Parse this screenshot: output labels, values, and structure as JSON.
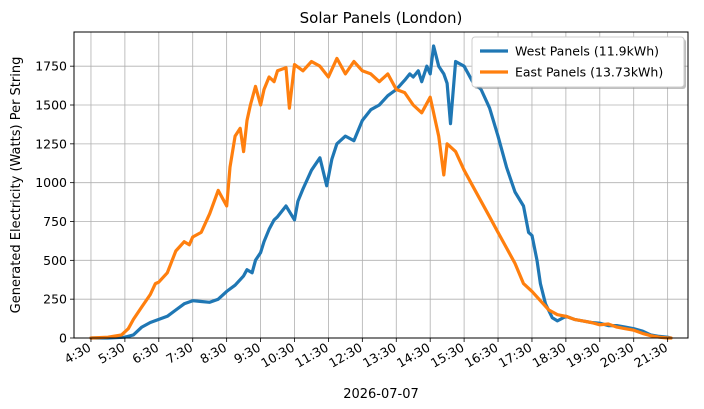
{
  "chart_data": {
    "type": "line",
    "title": "Solar Panels (London)",
    "xlabel": "2026-07-07",
    "ylabel": "Generated Electricity (Watts) Per String",
    "x_unit": "hours",
    "xlim": [
      4.0,
      22.1
    ],
    "ylim": [
      0,
      1970
    ],
    "x_ticks": [
      4.5,
      5.5,
      6.5,
      7.5,
      8.5,
      9.5,
      10.5,
      11.5,
      12.5,
      13.5,
      14.5,
      15.5,
      16.5,
      17.5,
      18.5,
      19.5,
      20.5,
      21.5
    ],
    "x_tick_labels": [
      "4:30",
      "5:30",
      "6:30",
      "7:30",
      "8:30",
      "9:30",
      "10:30",
      "11:30",
      "12:30",
      "13:30",
      "14:30",
      "15:30",
      "16:30",
      "17:30",
      "18:30",
      "19:30",
      "20:30",
      "21:30"
    ],
    "y_ticks": [
      0,
      250,
      500,
      750,
      1000,
      1250,
      1500,
      1750
    ],
    "y_tick_labels": [
      "0",
      "250",
      "500",
      "750",
      "1000",
      "1250",
      "1500",
      "1750"
    ],
    "grid": true,
    "legend_position": "top-right",
    "series": [
      {
        "name": "West Panels (11.9kWh)",
        "color": "#1f77b4",
        "x": [
          4.5,
          5.0,
          5.5,
          5.75,
          6.0,
          6.25,
          6.5,
          6.75,
          7.0,
          7.25,
          7.5,
          7.75,
          8.0,
          8.25,
          8.5,
          8.75,
          9.0,
          9.1,
          9.25,
          9.35,
          9.5,
          9.6,
          9.75,
          9.9,
          10.0,
          10.25,
          10.5,
          10.6,
          10.75,
          11.0,
          11.25,
          11.45,
          11.6,
          11.75,
          12.0,
          12.25,
          12.5,
          12.75,
          13.0,
          13.25,
          13.5,
          13.75,
          13.9,
          14.0,
          14.15,
          14.25,
          14.4,
          14.5,
          14.6,
          14.75,
          14.9,
          15.0,
          15.1,
          15.25,
          15.5,
          15.75,
          16.0,
          16.25,
          16.5,
          16.75,
          17.0,
          17.25,
          17.4,
          17.5,
          17.65,
          17.75,
          17.9,
          18.1,
          18.25,
          18.5,
          18.75,
          19.0,
          19.25,
          19.5,
          19.75,
          20.0,
          20.25,
          20.5,
          20.75,
          21.0,
          21.25,
          21.5,
          21.6
        ],
        "values": [
          0,
          0,
          5,
          20,
          70,
          100,
          120,
          140,
          180,
          220,
          240,
          235,
          230,
          250,
          300,
          340,
          400,
          440,
          420,
          500,
          550,
          620,
          700,
          760,
          780,
          850,
          760,
          880,
          960,
          1080,
          1160,
          980,
          1150,
          1250,
          1300,
          1270,
          1400,
          1470,
          1500,
          1560,
          1600,
          1660,
          1700,
          1680,
          1720,
          1650,
          1750,
          1700,
          1880,
          1750,
          1700,
          1640,
          1380,
          1780,
          1750,
          1650,
          1600,
          1480,
          1300,
          1100,
          940,
          850,
          680,
          660,
          500,
          350,
          220,
          130,
          110,
          140,
          120,
          110,
          100,
          95,
          80,
          80,
          70,
          60,
          45,
          20,
          10,
          5,
          0
        ]
      },
      {
        "name": "East Panels (13.73kWh)",
        "color": "#ff7f0e",
        "x": [
          4.5,
          5.0,
          5.4,
          5.6,
          5.75,
          6.0,
          6.25,
          6.4,
          6.5,
          6.75,
          7.0,
          7.25,
          7.4,
          7.5,
          7.75,
          8.0,
          8.25,
          8.5,
          8.6,
          8.75,
          8.9,
          9.0,
          9.1,
          9.2,
          9.35,
          9.5,
          9.6,
          9.75,
          9.9,
          10.0,
          10.25,
          10.35,
          10.5,
          10.75,
          11.0,
          11.25,
          11.5,
          11.75,
          12.0,
          12.25,
          12.5,
          12.75,
          13.0,
          13.25,
          13.5,
          13.75,
          14.0,
          14.25,
          14.5,
          14.75,
          14.9,
          15.0,
          15.25,
          15.5,
          15.75,
          16.0,
          16.25,
          16.5,
          16.75,
          17.0,
          17.25,
          17.5,
          17.75,
          18.0,
          18.25,
          18.5,
          18.75,
          19.0,
          19.25,
          19.5,
          19.75,
          20.0,
          20.25,
          20.5,
          20.75,
          21.0,
          21.25,
          21.5,
          21.6
        ],
        "values": [
          0,
          5,
          20,
          60,
          120,
          200,
          280,
          350,
          360,
          420,
          560,
          620,
          600,
          650,
          680,
          800,
          950,
          850,
          1100,
          1300,
          1350,
          1200,
          1400,
          1500,
          1620,
          1500,
          1600,
          1680,
          1650,
          1720,
          1740,
          1480,
          1760,
          1720,
          1780,
          1750,
          1680,
          1800,
          1700,
          1780,
          1720,
          1700,
          1650,
          1700,
          1600,
          1580,
          1500,
          1450,
          1550,
          1300,
          1050,
          1250,
          1200,
          1080,
          980,
          880,
          780,
          680,
          580,
          480,
          350,
          300,
          240,
          180,
          150,
          140,
          120,
          110,
          100,
          85,
          90,
          70,
          60,
          50,
          30,
          15,
          5,
          0,
          0
        ]
      }
    ]
  }
}
